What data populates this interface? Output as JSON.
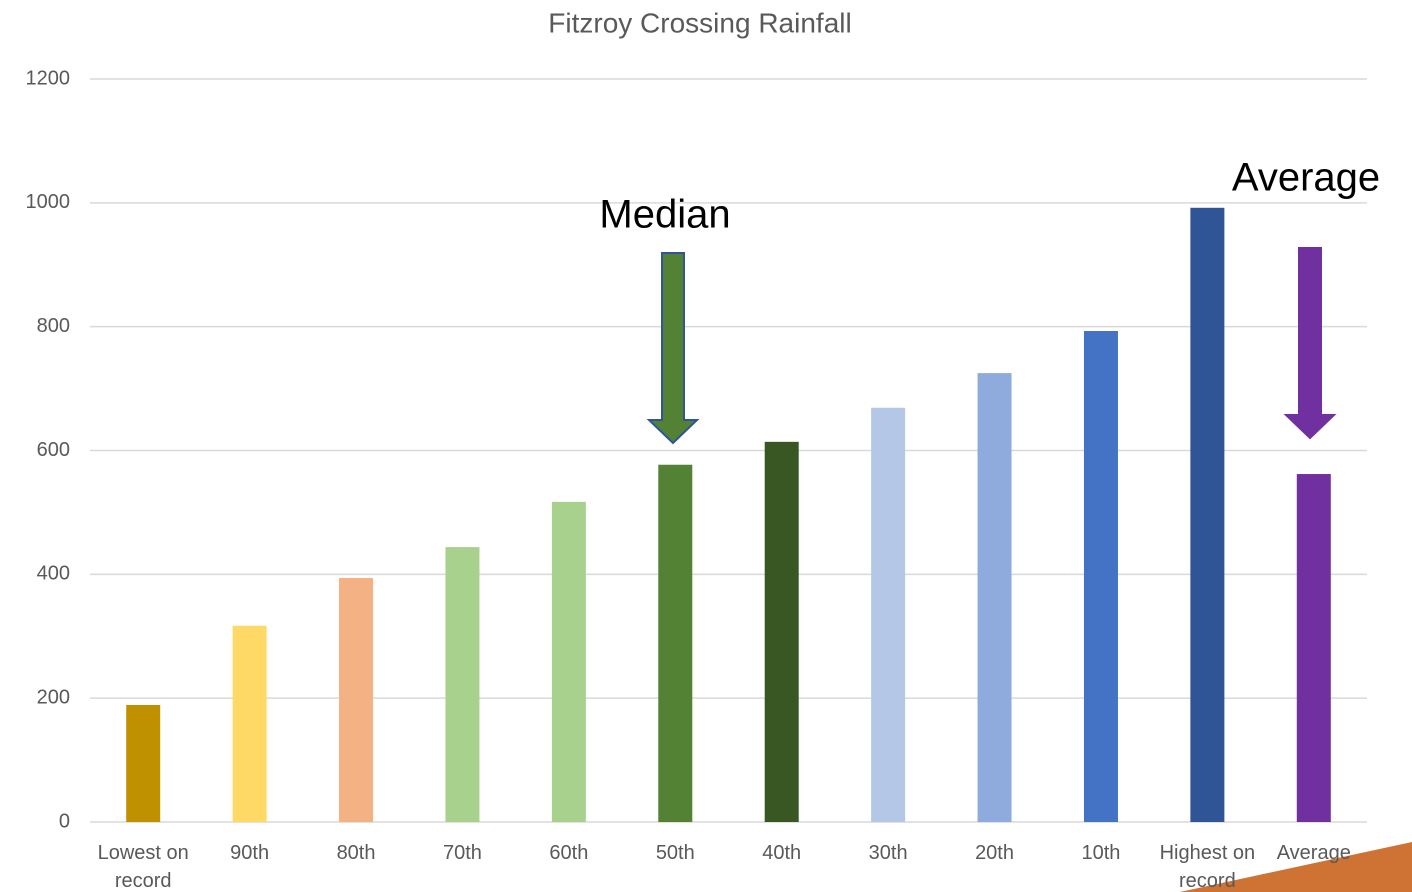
{
  "chart_data": {
    "type": "bar",
    "title": "Fitzroy Crossing Rainfall",
    "categories": [
      "Lowest on record",
      "90th",
      "80th",
      "70th",
      "60th",
      "50th",
      "40th",
      "30th",
      "20th",
      "10th",
      "Highest on record",
      "Average"
    ],
    "values": [
      189,
      317,
      394,
      444,
      517,
      577,
      614,
      669,
      725,
      793,
      992,
      562
    ],
    "colors": [
      "#bf9000",
      "#ffd966",
      "#f4b183",
      "#a9d18e",
      "#a9d18e",
      "#548235",
      "#385723",
      "#b4c7e7",
      "#8faadc",
      "#4472c4",
      "#2f5597",
      "#7030a0"
    ],
    "ylim": [
      0,
      1200
    ],
    "yticks": [
      0,
      200,
      400,
      600,
      800,
      1000,
      1200
    ],
    "grid": true,
    "annotations": [
      "Median",
      "Average"
    ]
  }
}
